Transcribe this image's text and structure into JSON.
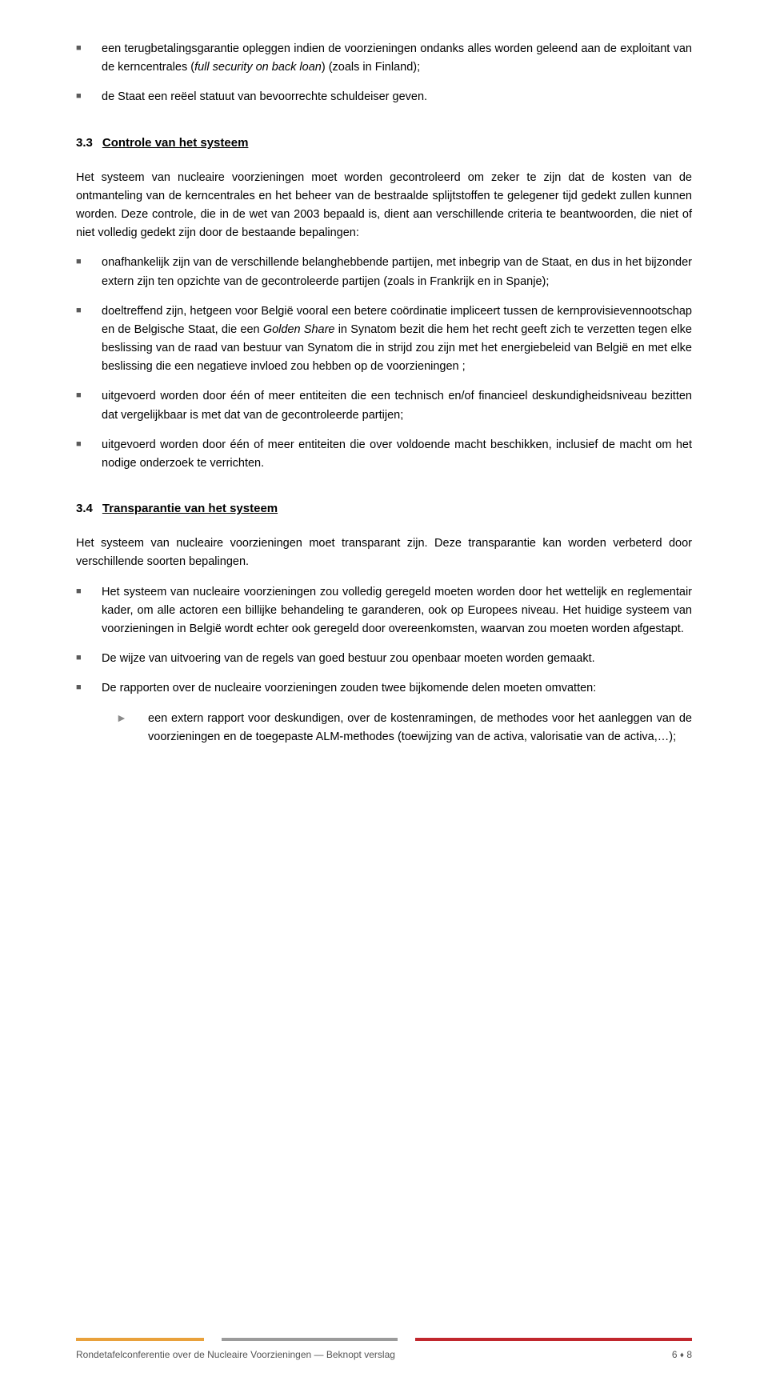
{
  "top_bullets": [
    {
      "pre": "een terugbetalingsgarantie opleggen indien de voorzieningen ondanks alles worden geleend aan de exploitant van de kerncentrales (",
      "italic": "full security on back loan",
      "post": ") (zoals in Finland);"
    },
    {
      "text": "de Staat een reëel statuut van bevoorrechte schuldeiser geven."
    }
  ],
  "section33": {
    "num": "3.3",
    "title": "Controle van het systeem",
    "para": "Het systeem van nucleaire voorzieningen moet worden gecontroleerd om zeker te zijn dat de kosten van de ontmanteling van de kerncentrales en het beheer van de bestraalde splijtstoffen te gelegener tijd gedekt zullen kunnen worden. Deze controle, die in de wet van 2003 bepaald is, dient aan verschillende criteria te beantwoorden, die niet of niet volledig gedekt zijn door de bestaande bepalingen:",
    "bullets": [
      "onafhankelijk zijn van de verschillende belanghebbende partijen, met inbegrip van de Staat, en dus in het bijzonder extern zijn ten opzichte van de gecontroleerde partijen (zoals in Frankrijk en in Spanje);",
      {
        "pre": "doeltreffend zijn, hetgeen voor België vooral een betere coördinatie impliceert tussen de kernprovisievennootschap en de Belgische Staat, die een ",
        "italic": "Golden Share",
        "post": " in Synatom bezit die hem het recht geeft zich te verzetten tegen elke beslissing van de raad van bestuur van Synatom die in strijd zou zijn met het energiebeleid van België en met elke beslissing die een negatieve invloed zou hebben op de voorzieningen ;"
      },
      "uitgevoerd worden door één of meer entiteiten die een technisch en/of financieel deskundigheidsniveau bezitten dat vergelijkbaar is met dat van de gecontroleerde partijen;",
      "uitgevoerd worden door één of meer entiteiten die over voldoende macht beschikken, inclusief de macht om het nodige onderzoek te verrichten."
    ]
  },
  "section34": {
    "num": "3.4",
    "title": "Transparantie van het systeem",
    "para": "Het systeem van nucleaire voorzieningen moet transparant zijn. Deze transparantie kan worden verbeterd door verschillende soorten bepalingen.",
    "bullets": [
      "Het systeem van nucleaire voorzieningen zou volledig geregeld moeten worden door het wettelijk en reglementair kader, om alle actoren een billijke behandeling te garanderen, ook op Europees niveau. Het huidige systeem van voorzieningen in België wordt echter ook geregeld door overeenkomsten, waarvan zou moeten worden afgestapt.",
      "De wijze van uitvoering van de regels van goed bestuur zou openbaar moeten worden gemaakt.",
      "De rapporten over de nucleaire voorzieningen zouden twee bijkomende delen moeten omvatten:"
    ],
    "subbullets": [
      "een extern rapport voor deskundigen, over de kostenramingen, de methodes voor het aanleggen van de voorzieningen en de toegepaste ALM-methodes (toewijzing van de activa, valorisatie van de activa,…);"
    ]
  },
  "footer": {
    "left": "Rondetafelconferentie over de Nucleaire Voorzieningen — Beknopt verslag",
    "page_left": "6",
    "page_right": "8"
  },
  "colors": {
    "bullet_marker": "#5a5a5a",
    "sub_marker": "#8a8a8a",
    "bar_orange": "#e9a13b",
    "bar_gray": "#9b9b9b",
    "bar_red": "#c1272d",
    "footer_text": "#555555",
    "background": "#ffffff"
  },
  "typography": {
    "body_fontsize": 14.5,
    "heading_fontsize": 15,
    "footer_fontsize": 12,
    "line_height": 1.6,
    "font_family": "Verdana"
  },
  "glyphs": {
    "square": "■",
    "tri": "►",
    "diamond": "♦"
  }
}
